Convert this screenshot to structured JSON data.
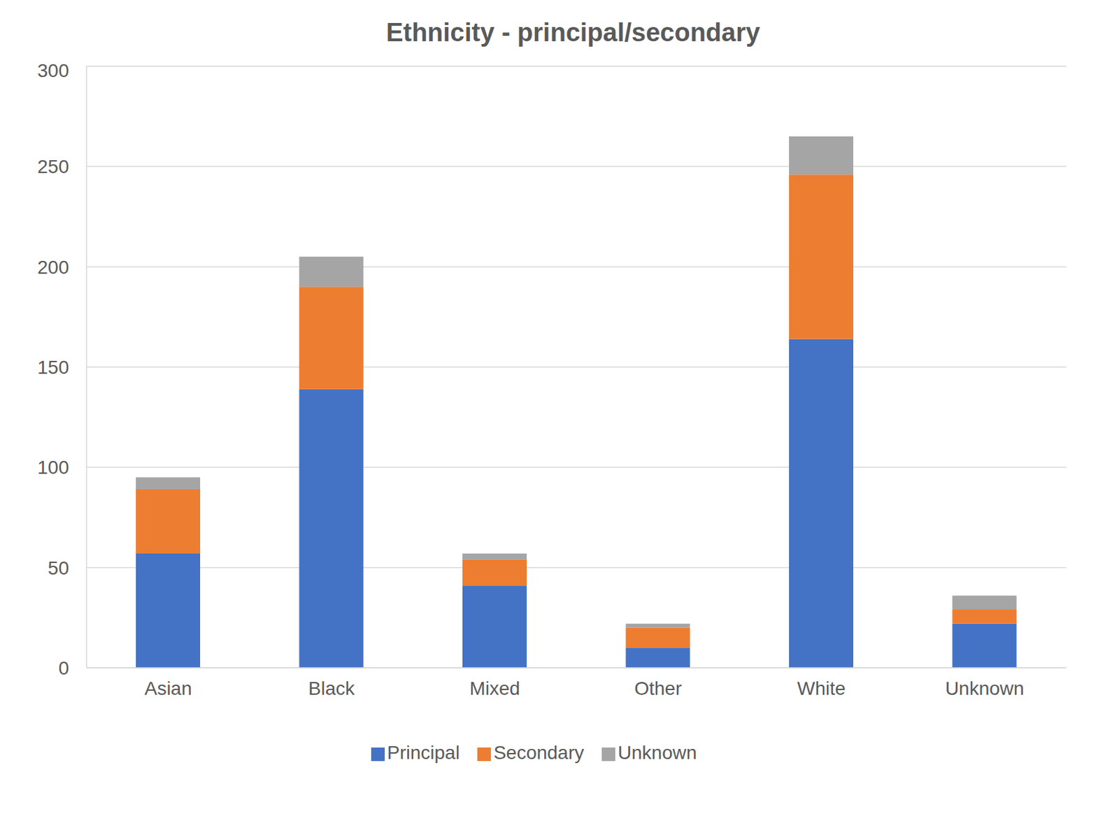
{
  "chart_data": {
    "type": "bar",
    "title": "Ethnicity - principal/secondary",
    "categories": [
      "Asian",
      "Black",
      "Mixed",
      "Other",
      "White",
      "Unknown"
    ],
    "series": [
      {
        "name": "Principal",
        "color": "#4472c4",
        "values": [
          57,
          139,
          41,
          10,
          164,
          22
        ]
      },
      {
        "name": "Secondary",
        "color": "#ed7d31",
        "values": [
          32,
          51,
          13,
          10,
          82,
          7
        ]
      },
      {
        "name": "Unknown",
        "color": "#a5a5a5",
        "values": [
          6,
          15,
          3,
          2,
          19,
          7
        ]
      }
    ],
    "stacked": true,
    "ylim": [
      0,
      300
    ],
    "yticks": [
      0,
      50,
      100,
      150,
      200,
      250,
      300
    ],
    "grid": true,
    "legend": "bottom"
  }
}
